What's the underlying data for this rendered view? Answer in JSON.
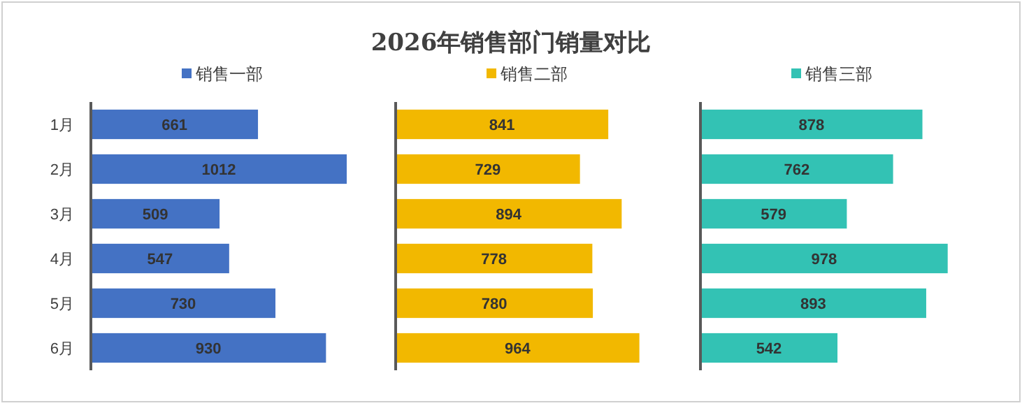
{
  "chart_data": [
    {
      "type": "other",
      "title": "2026年销售部门销量对比"
    },
    {
      "type": "bar",
      "orientation": "horizontal",
      "categories": [
        "1月",
        "2月",
        "3月",
        "4月",
        "5月",
        "6月"
      ],
      "series": [
        {
          "name": "销售一部",
          "color": "#4472c4",
          "values": [
            661,
            1012,
            509,
            547,
            730,
            930
          ]
        }
      ],
      "data_labels": true,
      "legend": "top",
      "tick_labels": "y"
    },
    {
      "type": "bar",
      "orientation": "horizontal",
      "categories": [
        null,
        null,
        null,
        null,
        null,
        null
      ],
      "series": [
        {
          "name": "销售二部",
          "color": "#f2b800",
          "values": [
            841,
            729,
            894,
            778,
            780,
            964
          ]
        }
      ],
      "data_labels": true,
      "legend": "top",
      "tick_labels": false
    },
    {
      "type": "bar",
      "orientation": "horizontal",
      "categories": [
        null,
        null,
        null,
        null,
        null,
        null
      ],
      "series": [
        {
          "name": "销售三部",
          "color": "#33c2b4",
          "values": [
            878,
            762,
            579,
            978,
            893,
            542
          ]
        }
      ],
      "data_labels": true,
      "legend": "top",
      "tick_labels": false
    }
  ]
}
